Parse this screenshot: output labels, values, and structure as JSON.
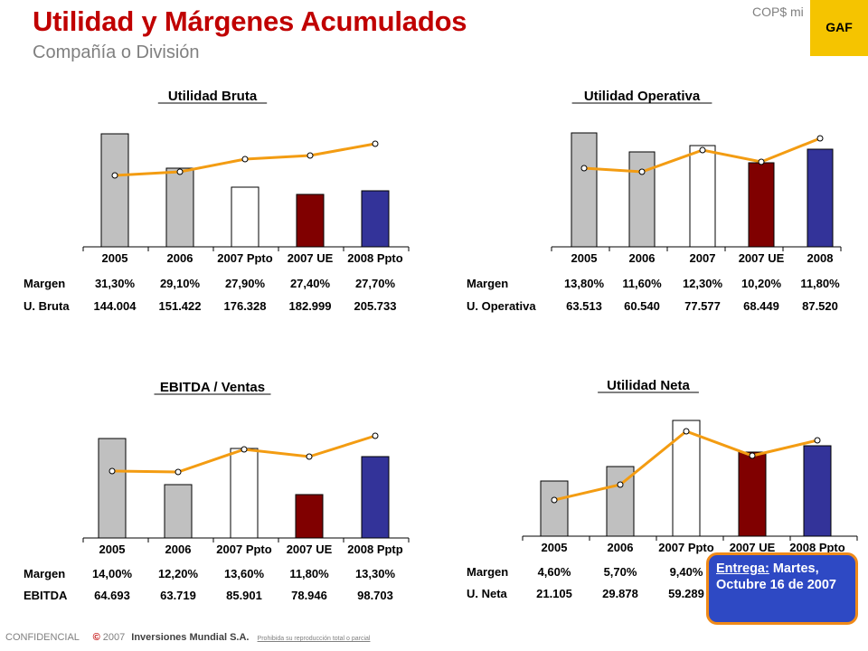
{
  "header": {
    "title": "Utilidad y Márgenes Acumulados",
    "subtitle": "Compañía o División",
    "currency": "COP$ mi",
    "badge": "GAF"
  },
  "note": {
    "label": "Entrega:",
    "text": " Martes, Octubre 16 de 2007"
  },
  "footer": {
    "confidential": "CONFIDENCIAL",
    "copyright_symbol": "©",
    "year": "2007",
    "company": "Inversiones Mundial S.A.",
    "prohibition": "Prohibida su reproducción total o parcial"
  },
  "chart_data": [
    {
      "type": "bar",
      "title": "Utilidad Bruta",
      "categories": [
        "2005",
        "2006",
        "2007 Ppto",
        "2007 UE",
        "2008 Ppto"
      ],
      "bar_colors": [
        "#c0c0c0",
        "#c0c0c0",
        "#ffffff",
        "#800000",
        "#333399"
      ],
      "line_color": "#f39c12",
      "series": [
        {
          "values": [
            144004,
            151422,
            176328,
            182999,
            205733
          ]
        },
        {
          "values": [
            31.3,
            29.1,
            27.9,
            27.4,
            27.7
          ]
        }
      ],
      "table": [
        {
          "label": "Margen",
          "values": [
            "31,30%",
            "29,10%",
            "27,90%",
            "27,40%",
            "27,70%"
          ]
        },
        {
          "label": "U. Bruta",
          "values": [
            "144.004",
            "151.422",
            "176.328",
            "182.999",
            "205.733"
          ]
        }
      ]
    },
    {
      "type": "bar",
      "title": "Utilidad Operativa",
      "categories": [
        "2005",
        "2006",
        "2007",
        "2007 UE",
        "2008"
      ],
      "bar_colors": [
        "#c0c0c0",
        "#c0c0c0",
        "#ffffff",
        "#800000",
        "#333399"
      ],
      "line_color": "#f39c12",
      "series": [
        {
          "values": [
            63513,
            60540,
            77577,
            68449,
            87520
          ]
        },
        {
          "values": [
            13.8,
            11.6,
            12.3,
            10.2,
            11.8
          ]
        }
      ],
      "table": [
        {
          "label": "Margen",
          "values": [
            "13,80%",
            "11,60%",
            "12,30%",
            "10,20%",
            "11,80%"
          ]
        },
        {
          "label": "U. Operativa",
          "values": [
            "63.513",
            "60.540",
            "77.577",
            "68.449",
            "87.520"
          ]
        }
      ]
    },
    {
      "type": "bar",
      "title": "EBITDA / Ventas",
      "categories": [
        "2005",
        "2006",
        "2007 Ppto",
        "2007 UE",
        "2008 Pptp"
      ],
      "bar_colors": [
        "#c0c0c0",
        "#c0c0c0",
        "#ffffff",
        "#800000",
        "#333399"
      ],
      "line_color": "#f39c12",
      "series": [
        {
          "values": [
            64693,
            63719,
            85901,
            78946,
            98703
          ]
        },
        {
          "values": [
            14.0,
            12.2,
            13.6,
            11.8,
            13.3
          ]
        }
      ],
      "table": [
        {
          "label": "Margen",
          "values": [
            "14,00%",
            "12,20%",
            "13,60%",
            "11,80%",
            "13,30%"
          ]
        },
        {
          "label": "EBITDA",
          "values": [
            "64.693",
            "63.719",
            "85.901",
            "78.946",
            "98.703"
          ]
        }
      ]
    },
    {
      "type": "bar",
      "title": "Utilidad Neta",
      "categories": [
        "2005",
        "2006",
        "2007 Ppto",
        "2007 UE",
        "2008 Ppto"
      ],
      "bar_colors": [
        "#c0c0c0",
        "#c0c0c0",
        "#ffffff",
        "#800000",
        "#333399"
      ],
      "line_color": "#f39c12",
      "series": [
        {
          "values": [
            21105,
            29878,
            59289,
            null,
            null
          ]
        },
        {
          "values": [
            4.6,
            5.7,
            9.4,
            null,
            null
          ]
        }
      ],
      "table": [
        {
          "label": "Margen",
          "values": [
            "4,60%",
            "5,70%",
            "9,40%",
            "",
            ""
          ]
        },
        {
          "label": "U. Neta",
          "values": [
            "21.105",
            "29.878",
            "59.289",
            "",
            ""
          ]
        }
      ]
    }
  ]
}
